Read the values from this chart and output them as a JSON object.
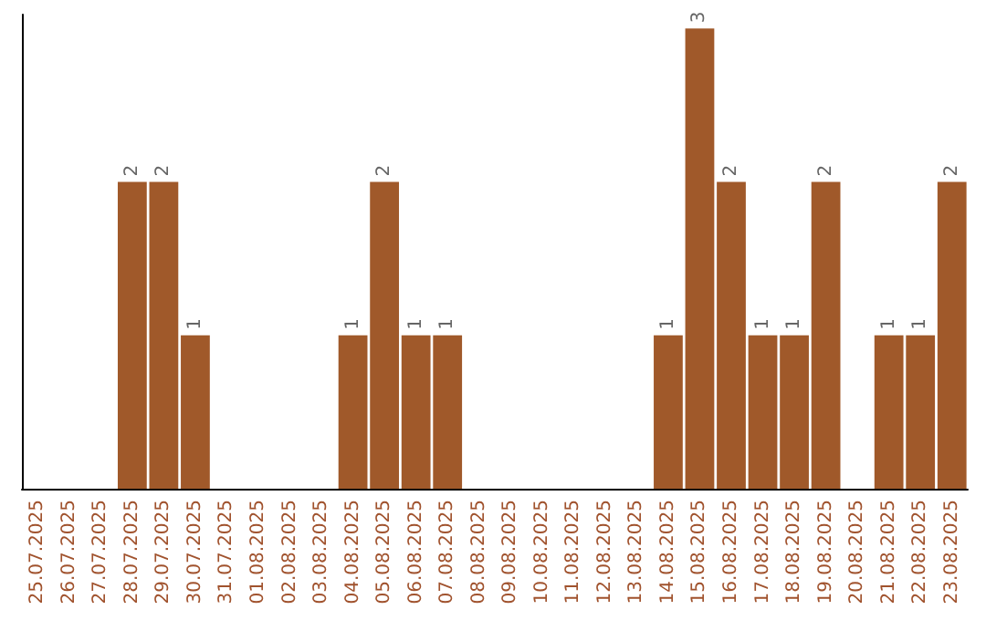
{
  "chart_data": {
    "type": "bar",
    "categories": [
      "25.07.2025",
      "26.07.2025",
      "27.07.2025",
      "28.07.2025",
      "29.07.2025",
      "30.07.2025",
      "31.07.2025",
      "01.08.2025",
      "02.08.2025",
      "03.08.2025",
      "04.08.2025",
      "05.08.2025",
      "06.08.2025",
      "07.08.2025",
      "08.08.2025",
      "09.08.2025",
      "10.08.2025",
      "11.08.2025",
      "12.08.2025",
      "13.08.2025",
      "14.08.2025",
      "15.08.2025",
      "16.08.2025",
      "17.08.2025",
      "18.08.2025",
      "19.08.2025",
      "20.08.2025",
      "21.08.2025",
      "22.08.2025",
      "23.08.2025"
    ],
    "values": [
      0,
      0,
      0,
      2,
      2,
      1,
      0,
      0,
      0,
      0,
      1,
      2,
      1,
      1,
      0,
      0,
      0,
      0,
      0,
      0,
      1,
      3,
      2,
      1,
      1,
      2,
      0,
      1,
      1,
      2
    ],
    "value_labels": [
      null,
      null,
      null,
      "2",
      "2",
      "1",
      null,
      null,
      null,
      null,
      "1",
      "2",
      "1",
      "1",
      null,
      null,
      null,
      null,
      null,
      null,
      "1",
      "3",
      "2",
      "1",
      "1",
      "2",
      null,
      "1",
      "1",
      "2"
    ],
    "color": "#a0592a",
    "tick_labels": "x"
  }
}
